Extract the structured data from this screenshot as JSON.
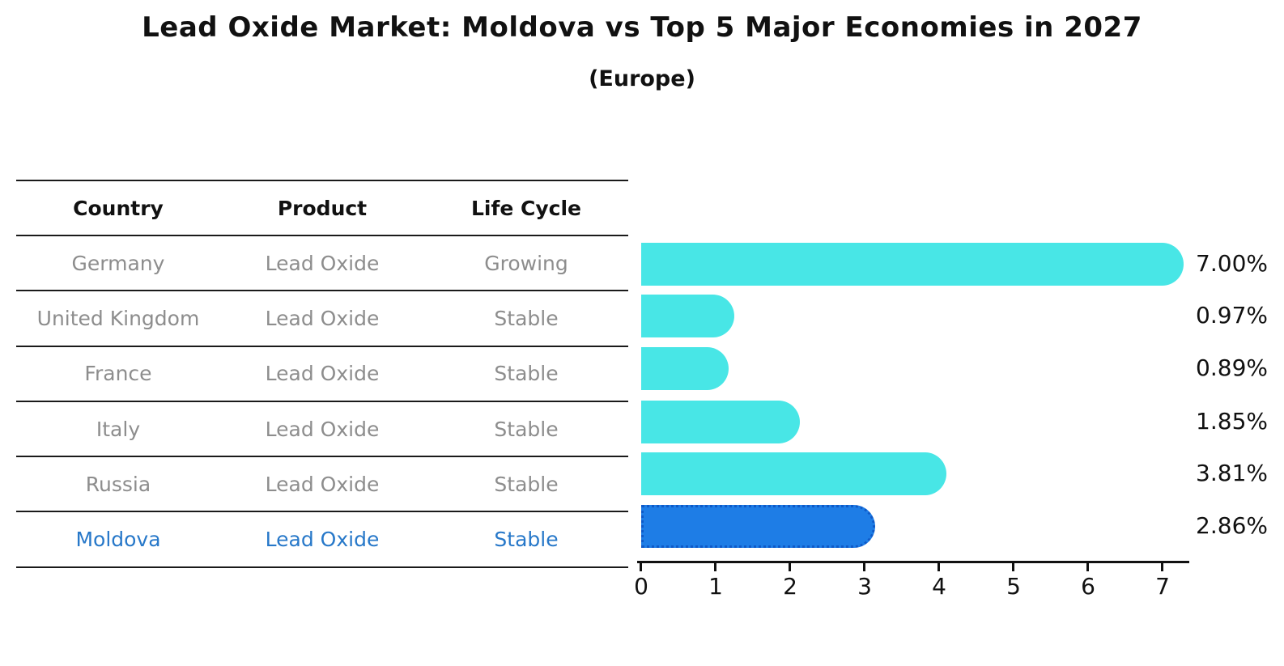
{
  "header": {
    "title": "Lead Oxide Market: Moldova vs Top 5 Major Economies in 2027",
    "subtitle": "(Europe)"
  },
  "table": {
    "headers": [
      "Country",
      "Product",
      "Life Cycle"
    ],
    "rows": [
      {
        "country": "Germany",
        "product": "Lead Oxide",
        "life_cycle": "Growing",
        "highlighted": false
      },
      {
        "country": "United Kingdom",
        "product": "Lead Oxide",
        "life_cycle": "Stable",
        "highlighted": false
      },
      {
        "country": "France",
        "product": "Lead Oxide",
        "life_cycle": "Stable",
        "highlighted": false
      },
      {
        "country": "Italy",
        "product": "Lead Oxide",
        "life_cycle": "Stable",
        "highlighted": false
      },
      {
        "country": "Russia",
        "product": "Lead Oxide",
        "life_cycle": "Stable",
        "highlighted": false
      },
      {
        "country": "Moldova",
        "product": "Lead Oxide",
        "life_cycle": "Stable",
        "highlighted": true
      }
    ]
  },
  "chart_data": {
    "type": "bar",
    "orientation": "horizontal",
    "categories": [
      "Germany",
      "United Kingdom",
      "France",
      "Italy",
      "Russia",
      "Moldova"
    ],
    "values": [
      7.0,
      0.97,
      0.89,
      1.85,
      3.81,
      2.86
    ],
    "value_labels": [
      "7.00%",
      "0.97%",
      "0.89%",
      "1.85%",
      "3.81%",
      "2.86%"
    ],
    "xticks": [
      "0",
      "1",
      "2",
      "3",
      "4",
      "5",
      "6",
      "7"
    ],
    "xlim": [
      0,
      7.35
    ],
    "grid": false,
    "legend": "none",
    "bar_color": "#48e6e6",
    "highlight_index": 5,
    "highlight_color": "#1e7de6",
    "highlight_edge_color": "#0f5ac8",
    "highlight_edge_style": "dotted",
    "highlight_text_color": "#2778c9",
    "row_text_color": "#8d8d8d",
    "axis_color": "#111111"
  }
}
